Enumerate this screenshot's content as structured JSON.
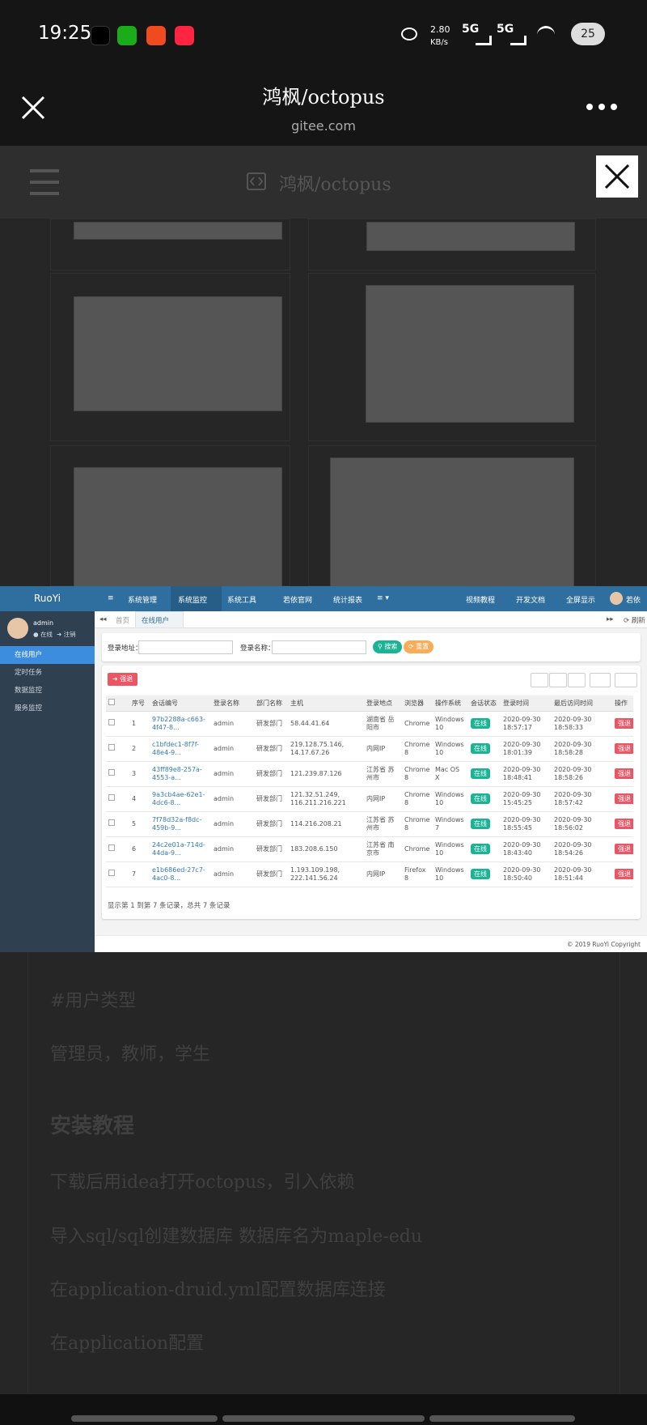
{
  "status_bar": {
    "time": "19:25",
    "speed": "2.80",
    "speed_unit": "KB/s",
    "signal_1": "5G",
    "signal_2": "5G",
    "battery": "25"
  },
  "header": {
    "title": "鸿枫/octopus",
    "domain": "gitee.com"
  },
  "page_header": {
    "title": "鸿枫/octopus"
  },
  "ruoyi": {
    "brand": "RuoYi",
    "nav": [
      "系统管理",
      "系统监控",
      "系统工具",
      "若依官网",
      "统计报表"
    ],
    "nav_right": [
      "视频教程",
      "开发文档",
      "全屏显示",
      "若依"
    ],
    "user": {
      "name": "admin",
      "status": "在线",
      "logout": "注销"
    },
    "menu": [
      "在线用户",
      "定时任务",
      "数据监控",
      "服务监控"
    ],
    "tabs": [
      "首页",
      "在线用户"
    ],
    "refresh": "刷新",
    "search": {
      "address_label": "登录地址：",
      "name_label": "登录名称：",
      "search_button": "搜索",
      "reset_button": "重置"
    },
    "force_logout_button": "强退",
    "table": {
      "columns": [
        "序号",
        "会话编号",
        "登录名称",
        "部门名称",
        "主机",
        "登录地点",
        "浏览器",
        "操作系统",
        "会话状态",
        "登录时间",
        "最后访问时间",
        "操作"
      ],
      "rows": [
        [
          "1",
          "97b2288a-c663-4f47-8...",
          "admin",
          "研发部门",
          "58.44.41.64",
          "湖南省 岳阳市",
          "Chrome",
          "Windows 10",
          "在线",
          "2020-09-30 18:57:17",
          "2020-09-30 18:58:33",
          "强退"
        ],
        [
          "2",
          "c1bfdec1-8f7f-48e4-9...",
          "admin",
          "研发部门",
          "219.128.75.146, 14.17.67.26",
          "内网IP",
          "Chrome 8",
          "Windows 10",
          "在线",
          "2020-09-30 18:01:39",
          "2020-09-30 18:58:28",
          "强退"
        ],
        [
          "3",
          "43ff89e8-257a-4553-a...",
          "admin",
          "研发部门",
          "121.239.87.126",
          "江苏省 苏州市",
          "Chrome 8",
          "Mac OS X",
          "在线",
          "2020-09-30 18:48:41",
          "2020-09-30 18:58:26",
          "强退"
        ],
        [
          "4",
          "9a3cb4ae-62e1-4dc6-8...",
          "admin",
          "研发部门",
          "121.32.51.249, 116.211.216.221",
          "内网IP",
          "Chrome 8",
          "Windows 10",
          "在线",
          "2020-09-30 15:45:25",
          "2020-09-30 18:57:42",
          "强退"
        ],
        [
          "5",
          "7f78d32a-f8dc-459b-9...",
          "admin",
          "研发部门",
          "114.216.208.21",
          "江苏省 苏州市",
          "Chrome 8",
          "Windows 7",
          "在线",
          "2020-09-30 18:55:45",
          "2020-09-30 18:56:02",
          "强退"
        ],
        [
          "6",
          "24c2e01a-714d-44da-9...",
          "admin",
          "研发部门",
          "183.208.6.150",
          "江苏省 南京市",
          "Chrome",
          "Windows 10",
          "在线",
          "2020-09-30 18:43:40",
          "2020-09-30 18:54:26",
          "强退"
        ],
        [
          "7",
          "e1b686ed-27c7-4ac0-8...",
          "admin",
          "研发部门",
          "1.193.109.198, 222.141.56.24",
          "内网IP",
          "Firefox 8",
          "Windows 10",
          "在线",
          "2020-09-30 18:50:40",
          "2020-09-30 18:51:44",
          "强退"
        ]
      ],
      "summary": "显示第 1 到第 7 条记录，总共 7 条记录"
    },
    "copyright": "© 2019 RuoYi Copyright"
  },
  "readme": {
    "user_type_heading": "#用户类型",
    "user_types": "管理员，教师，学生",
    "install_heading": "安装教程",
    "steps": [
      "下载后用idea打开octopus，引入依赖",
      "导入sql/sql创建数据库 数据库名为maple-edu",
      "在application-druid.yml配置数据库连接",
      "在application配置"
    ]
  }
}
